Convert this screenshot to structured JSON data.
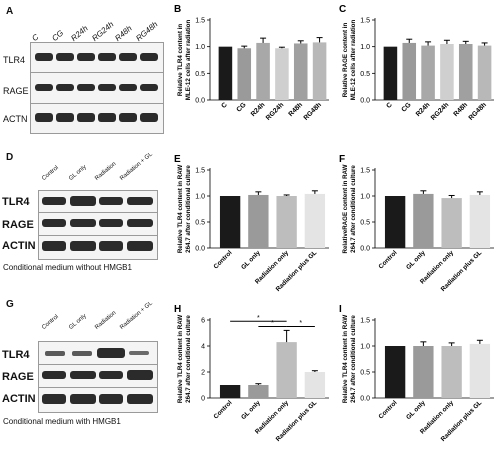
{
  "panels": {
    "A": {
      "label": "A",
      "lanes": [
        "C",
        "CG",
        "R24h",
        "RG24h",
        "R48h",
        "RG48h"
      ],
      "bands": [
        "TLR4",
        "RAGE",
        "ACTN"
      ]
    },
    "D": {
      "label": "D",
      "lanes": [
        "Control",
        "GL only",
        "Radiation",
        "Radiation + GL"
      ],
      "bands": [
        "TLR4",
        "RAGE",
        "ACTIN"
      ],
      "caption": "Conditional medium without HMGB1"
    },
    "G": {
      "label": "G",
      "lanes": [
        "Control",
        "GL only",
        "Radiation",
        "Radiation + GL"
      ],
      "bands": [
        "TLR4",
        "RAGE",
        "ACTIN"
      ],
      "caption": "Conditional medium with HMGB1"
    }
  },
  "chart_data": [
    {
      "label": "B",
      "type": "bar",
      "categories": [
        "C",
        "CG",
        "R24h",
        "RG24h",
        "R48h",
        "RG48h"
      ],
      "values": [
        1.0,
        0.97,
        1.07,
        0.97,
        1.06,
        1.08
      ],
      "errors": [
        0.0,
        0.04,
        0.09,
        0.02,
        0.05,
        0.09
      ],
      "colors": [
        "#1a1a1a",
        "#9a9a9a",
        "#a8a8a8",
        "#cfcfcf",
        "#a0a0a0",
        "#b8b8b8"
      ],
      "ylabel": "Relative TLR4 content in MLE-12 cells after radiation",
      "yticks": [
        "0.0",
        "0.5",
        "1.0",
        "1.5"
      ],
      "ylim": [
        0,
        1.5
      ]
    },
    {
      "label": "C",
      "type": "bar",
      "categories": [
        "C",
        "CG",
        "R24h",
        "RG24h",
        "R48h",
        "RG48h"
      ],
      "values": [
        1.0,
        1.07,
        1.02,
        1.05,
        1.05,
        1.02
      ],
      "errors": [
        0.0,
        0.07,
        0.07,
        0.07,
        0.05,
        0.05
      ],
      "colors": [
        "#1a1a1a",
        "#9a9a9a",
        "#a8a8a8",
        "#cfcfcf",
        "#a0a0a0",
        "#b8b8b8"
      ],
      "ylabel": "Relative RAGE content in MLE-12 cells after radiation",
      "yticks": [
        "0.0",
        "0.5",
        "1.0",
        "1.5"
      ],
      "ylim": [
        0,
        1.5
      ]
    },
    {
      "label": "E",
      "type": "bar",
      "categories": [
        "Control",
        "GL only",
        "Radiation only",
        "Radiation plus GL"
      ],
      "values": [
        1.0,
        1.02,
        1.0,
        1.04
      ],
      "errors": [
        0.0,
        0.06,
        0.02,
        0.06
      ],
      "colors": [
        "#1a1a1a",
        "#9a9a9a",
        "#bdbdbd",
        "#e4e4e4"
      ],
      "ylabel": "Relative TLR4 content in RAW 264.7 after conditional culture",
      "yticks": [
        "0.0",
        "0.5",
        "1.0",
        "1.5"
      ],
      "ylim": [
        0,
        1.5
      ]
    },
    {
      "label": "F",
      "type": "bar",
      "categories": [
        "Control",
        "GL only",
        "Radiation only",
        "Radiation plus GL"
      ],
      "values": [
        1.0,
        1.04,
        0.96,
        1.02
      ],
      "errors": [
        0.0,
        0.06,
        0.05,
        0.06
      ],
      "colors": [
        "#1a1a1a",
        "#9a9a9a",
        "#bdbdbd",
        "#e4e4e4"
      ],
      "ylabel": "RelativeRAGE content in RAW 264.7 after conditional culture",
      "yticks": [
        "0.0",
        "0.5",
        "1.0",
        "1.5"
      ],
      "ylim": [
        0,
        1.5
      ]
    },
    {
      "label": "H",
      "type": "bar",
      "categories": [
        "Control",
        "GL only",
        "Radiation only",
        "Radiation plus GL"
      ],
      "values": [
        1.0,
        1.0,
        4.3,
        2.0
      ],
      "errors": [
        0.0,
        0.1,
        0.9,
        0.1
      ],
      "colors": [
        "#1a1a1a",
        "#9a9a9a",
        "#bdbdbd",
        "#e4e4e4"
      ],
      "ylabel": "Relative TLR4 content in RAW 264.7 after conditional culture",
      "yticks": [
        "0",
        "2",
        "4",
        "6"
      ],
      "ylim": [
        0,
        6
      ],
      "significance": [
        "*",
        "*",
        "*"
      ]
    },
    {
      "label": "I",
      "type": "bar",
      "categories": [
        "Control",
        "GL only",
        "Radiation only",
        "Radiation plus GL"
      ],
      "values": [
        1.0,
        1.0,
        1.0,
        1.04
      ],
      "errors": [
        0.0,
        0.08,
        0.06,
        0.07
      ],
      "colors": [
        "#1a1a1a",
        "#9a9a9a",
        "#bdbdbd",
        "#e4e4e4"
      ],
      "ylabel": "Relative TLR4 content in RAW 264.7 after conditional culture",
      "yticks": [
        "0.0",
        "0.5",
        "1.0",
        "1.5"
      ],
      "ylim": [
        0,
        1.5
      ]
    }
  ]
}
